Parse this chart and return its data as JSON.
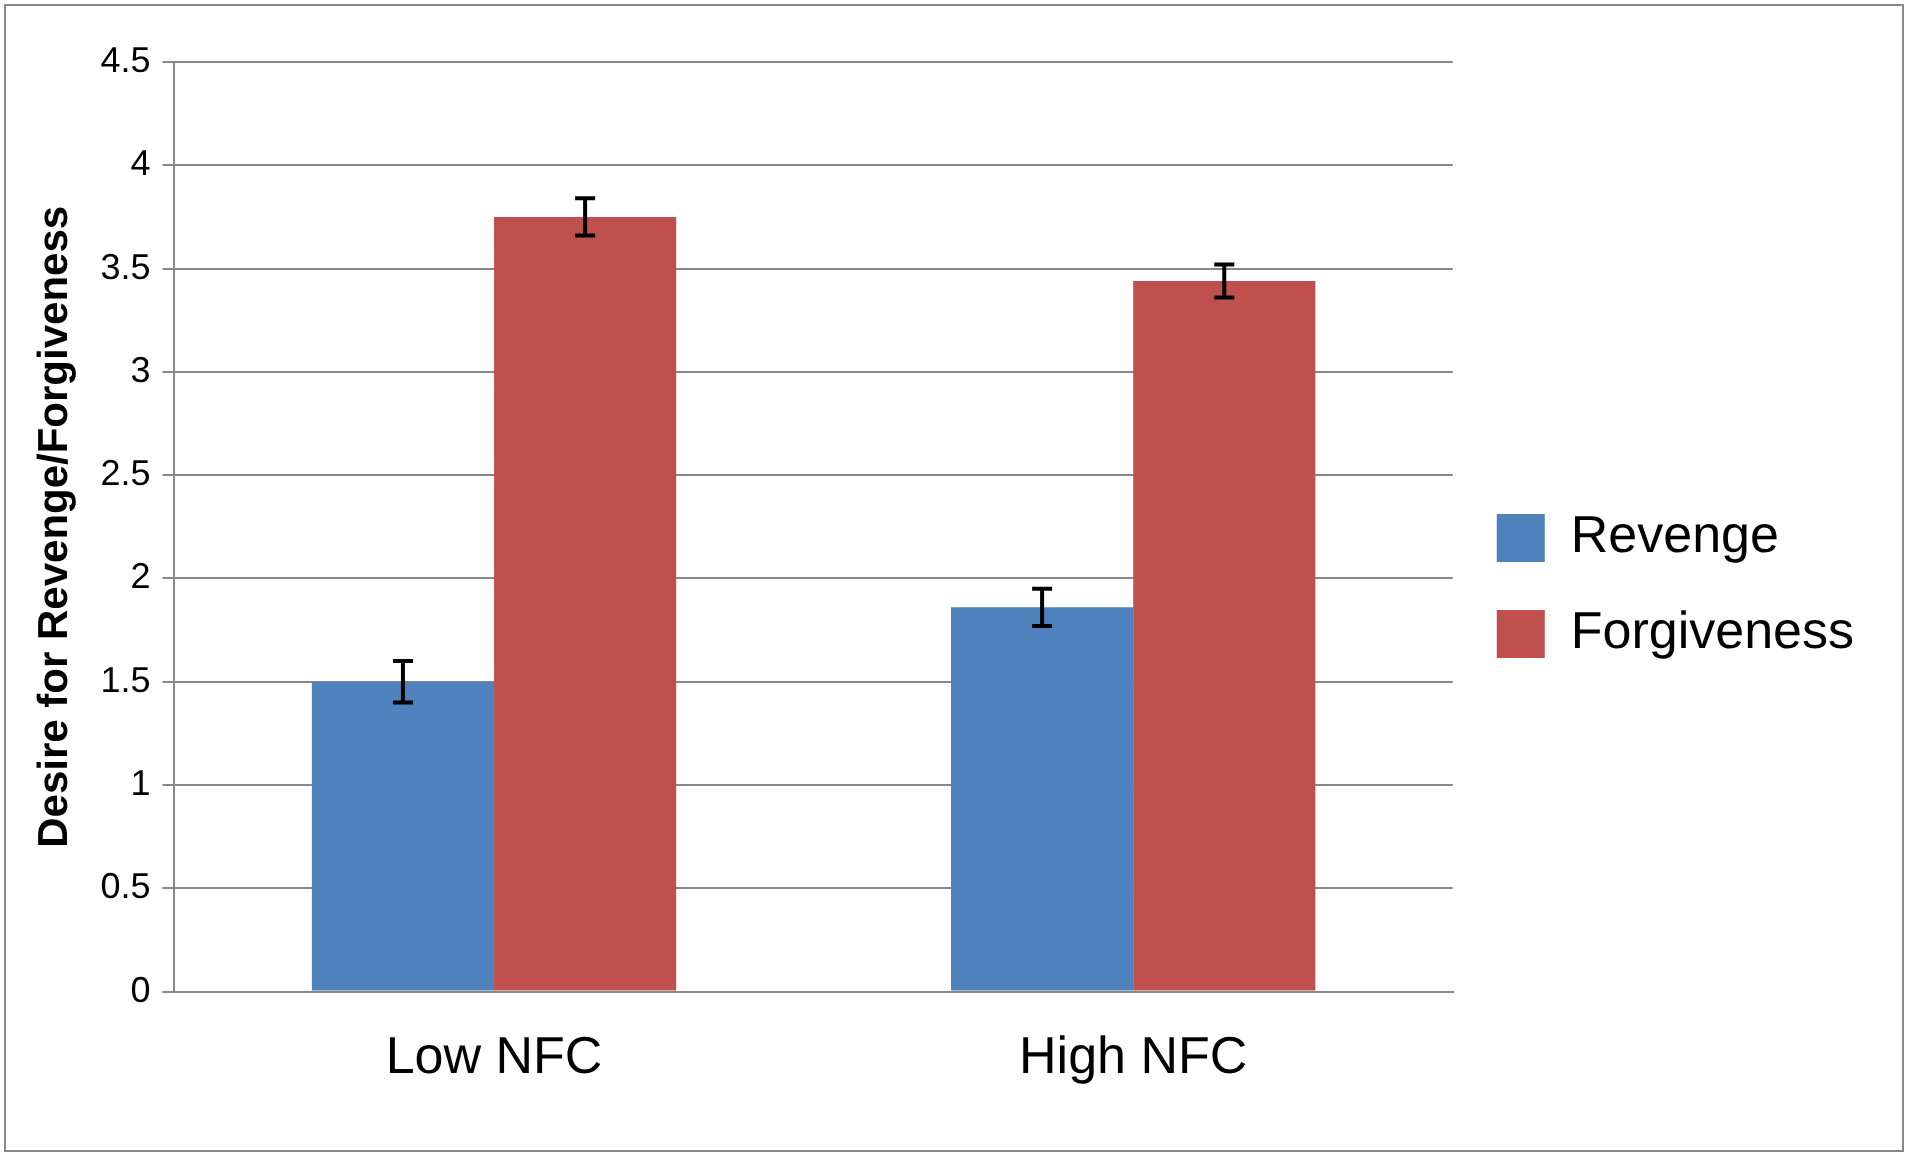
{
  "chart_data": {
    "type": "bar",
    "ylabel": "Desire for Revenge/Forgiveness",
    "categories": [
      "Low NFC",
      "High NFC"
    ],
    "series": [
      {
        "name": "Revenge",
        "color": "#4f81bd",
        "values": [
          1.5,
          1.86
        ],
        "errors": [
          0.1,
          0.09
        ]
      },
      {
        "name": "Forgiveness",
        "color": "#c0504d",
        "values": [
          3.75,
          3.44
        ],
        "errors": [
          0.09,
          0.08
        ]
      }
    ],
    "ylim": [
      0,
      4.5
    ],
    "yticks": [
      0,
      0.5,
      1,
      1.5,
      2,
      2.5,
      3,
      3.5,
      4,
      4.5
    ],
    "grid": "y",
    "legend": "right"
  }
}
